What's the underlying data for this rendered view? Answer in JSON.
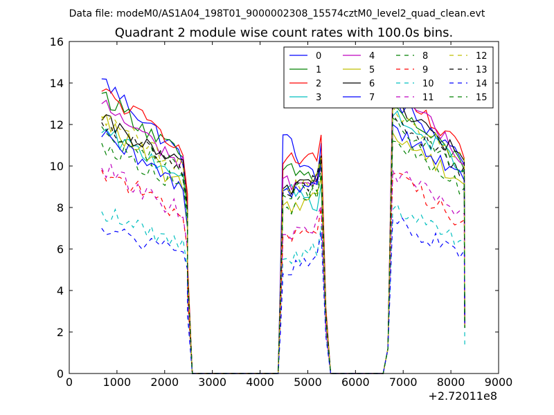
{
  "page": {
    "suptitle": "Data file: modeM0/AS1A04_198T01_9000002308_15574cztM0_level2_quad_clean.evt"
  },
  "chart_data": {
    "type": "line",
    "title": "Quadrant 2 module wise count rates with 100.0s bins.",
    "xlabel": "",
    "ylabel": "",
    "x_offset_label": "+2.72011e8",
    "xlim": [
      0,
      9000
    ],
    "ylim": [
      0,
      16
    ],
    "xticks": [
      0,
      1000,
      2000,
      3000,
      4000,
      5000,
      6000,
      7000,
      8000,
      9000
    ],
    "yticks": [
      0,
      2,
      4,
      6,
      8,
      10,
      12,
      14,
      16
    ],
    "xtick_labels": [
      "0",
      "1000",
      "2000",
      "3000",
      "4000",
      "5000",
      "6000",
      "7000",
      "8000",
      "9000"
    ],
    "ytick_labels": [
      "0",
      "2",
      "4",
      "6",
      "8",
      "10",
      "12",
      "14",
      "16"
    ],
    "legend_position": "top-right",
    "legend_columns": 4,
    "grid": false,
    "segments": [
      {
        "x0": 680,
        "x1": 2480,
        "n": 20
      },
      {
        "x0": 4480,
        "x1": 5280,
        "n": 10
      },
      {
        "x0": 6780,
        "x1": 8280,
        "n": 16
      }
    ],
    "series": [
      {
        "name": "0",
        "color": "#0000ff",
        "dash": "solid",
        "levels": [
          14.2,
          10.2,
          11.5,
          8.9,
          13.2,
          10.4
        ]
      },
      {
        "name": "1",
        "color": "#008000",
        "dash": "solid",
        "levels": [
          13.5,
          10.2,
          9.8,
          9.4,
          12.8,
          10.1
        ]
      },
      {
        "name": "2",
        "color": "#ff0000",
        "dash": "solid",
        "levels": [
          13.6,
          10.8,
          10.1,
          10.6,
          13.7,
          10.6
        ]
      },
      {
        "name": "3",
        "color": "#00bfbf",
        "dash": "solid",
        "levels": [
          11.6,
          9.5,
          8.8,
          8.2,
          12.4,
          10.0
        ]
      },
      {
        "name": "4",
        "color": "#bf00bf",
        "dash": "solid",
        "levels": [
          13.0,
          9.9,
          9.4,
          9.0,
          14.0,
          10.2
        ]
      },
      {
        "name": "5",
        "color": "#bfbf00",
        "dash": "solid",
        "levels": [
          12.3,
          8.7,
          8.1,
          8.5,
          11.6,
          9.2
        ]
      },
      {
        "name": "6",
        "color": "#000000",
        "dash": "solid",
        "levels": [
          12.2,
          9.8,
          8.9,
          9.6,
          13.2,
          10.3
        ]
      },
      {
        "name": "7",
        "color": "#0000ff",
        "dash": "solid",
        "levels": [
          11.4,
          8.8,
          8.8,
          9.2,
          12.0,
          9.3
        ]
      },
      {
        "name": "8",
        "color": "#008000",
        "dash": "dashed",
        "levels": [
          11.1,
          8.9,
          7.9,
          8.7,
          11.2,
          8.9
        ]
      },
      {
        "name": "9",
        "color": "#ff0000",
        "dash": "dashed",
        "levels": [
          9.8,
          7.5,
          6.6,
          7.1,
          9.6,
          7.3
        ]
      },
      {
        "name": "10",
        "color": "#00bfbf",
        "dash": "dashed",
        "levels": [
          7.8,
          6.1,
          5.5,
          6.2,
          7.9,
          6.3
        ]
      },
      {
        "name": "11",
        "color": "#bf00bf",
        "dash": "dashed",
        "levels": [
          9.9,
          7.6,
          6.7,
          7.2,
          9.8,
          7.5
        ]
      },
      {
        "name": "12",
        "color": "#bfbf00",
        "dash": "dashed",
        "levels": [
          12.4,
          9.7,
          8.9,
          9.5,
          12.9,
          10.1
        ]
      },
      {
        "name": "13",
        "color": "#000000",
        "dash": "dashed",
        "levels": [
          12.1,
          9.6,
          8.7,
          9.3,
          12.5,
          9.7
        ]
      },
      {
        "name": "14",
        "color": "#0000ff",
        "dash": "dashed",
        "levels": [
          7.0,
          5.6,
          4.8,
          5.9,
          7.4,
          5.6
        ]
      },
      {
        "name": "15",
        "color": "#008000",
        "dash": "dashed",
        "levels": [
          11.9,
          9.6,
          8.6,
          9.0,
          12.3,
          9.4
        ]
      }
    ]
  }
}
